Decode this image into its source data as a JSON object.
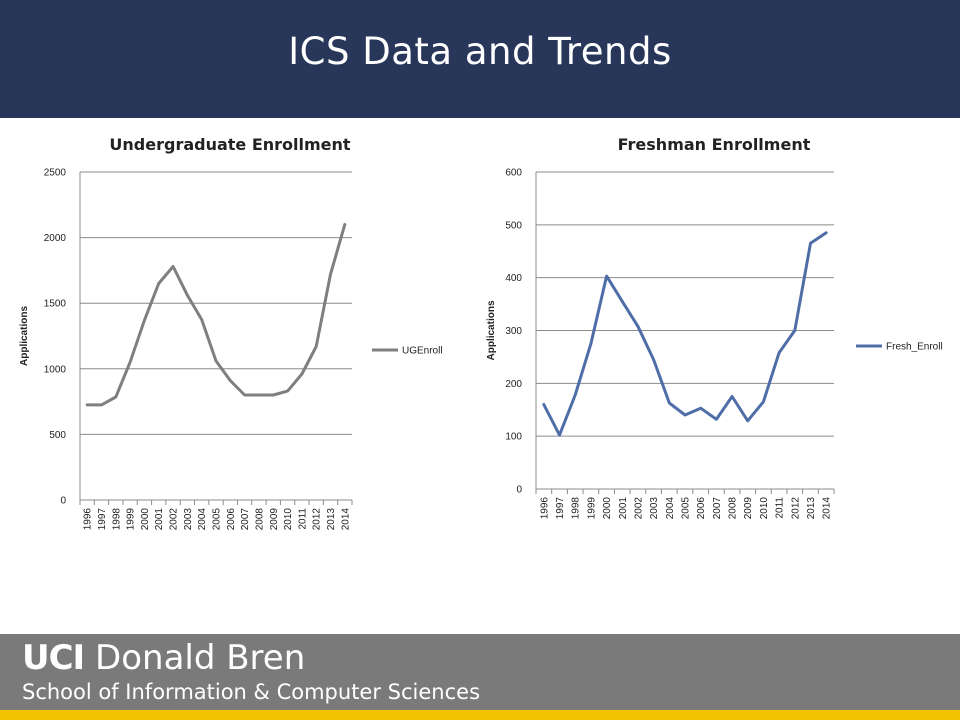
{
  "header": {
    "title": "ICS Data and Trends"
  },
  "footer": {
    "logo_uci": "UCI",
    "logo_name": "Donald Bren",
    "logo_school": "School of Information & Computer Sciences"
  },
  "colors": {
    "header_bg": "#283759",
    "footer_bg": "#7a7a7a",
    "footer_accent": "#f2c300"
  },
  "chart_data": [
    {
      "type": "line",
      "title": "Undergraduate Enrollment",
      "xlabel": "",
      "ylabel": "Applications",
      "ylim": [
        0,
        2500
      ],
      "yticks": [
        0,
        500,
        1000,
        1500,
        2000,
        2500
      ],
      "grid": true,
      "legend": "right",
      "categories": [
        "1996",
        "1997",
        "1998",
        "1999",
        "2000",
        "2001",
        "2002",
        "2003",
        "2004",
        "2005",
        "2006",
        "2007",
        "2008",
        "2009",
        "2010",
        "2011",
        "2012",
        "2013",
        "2014"
      ],
      "series": [
        {
          "name": "UGEnroll",
          "color": "#7f7f7f",
          "values": [
            725,
            725,
            785,
            1050,
            1370,
            1650,
            1780,
            1560,
            1375,
            1060,
            910,
            800,
            800,
            800,
            830,
            960,
            1170,
            1720,
            2100
          ]
        }
      ]
    },
    {
      "type": "line",
      "title": "Freshman Enrollment",
      "xlabel": "",
      "ylabel": "Applications",
      "ylim": [
        0,
        600
      ],
      "yticks": [
        0,
        100,
        200,
        300,
        400,
        500,
        600
      ],
      "grid": true,
      "legend": "right",
      "categories": [
        "1996",
        "1997",
        "1998",
        "1999",
        "2000",
        "2001",
        "2002",
        "2003",
        "2004",
        "2005",
        "2006",
        "2007",
        "2008",
        "2009",
        "2010",
        "2011",
        "2012",
        "2013",
        "2014"
      ],
      "series": [
        {
          "name": "Fresh_Enroll",
          "color": "#4f6ea8",
          "values": [
            160,
            102,
            178,
            275,
            403,
            355,
            308,
            245,
            163,
            140,
            153,
            132,
            175,
            129,
            165,
            258,
            300,
            465,
            485
          ]
        }
      ]
    }
  ]
}
